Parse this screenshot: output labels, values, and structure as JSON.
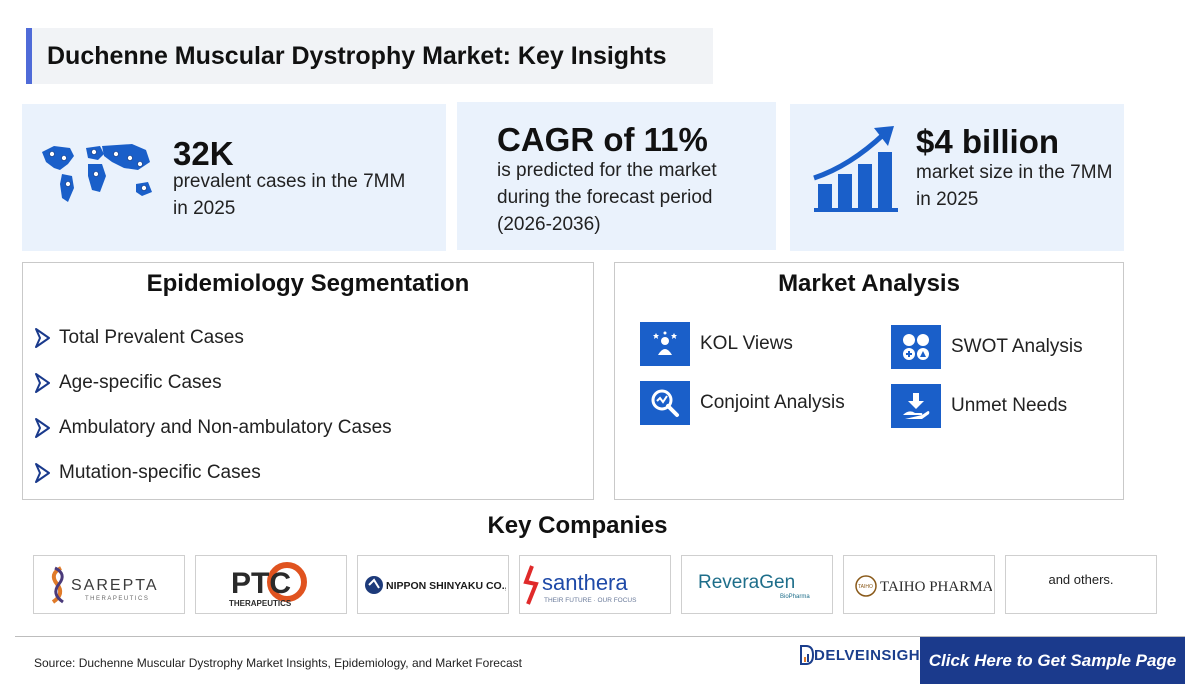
{
  "title": "Duchenne Muscular Dystrophy Market: Key Insights",
  "stats": [
    {
      "big": "32K",
      "text": "prevalent cases in the 7MM in 2025",
      "icon": "world-map-icon"
    },
    {
      "big": "CAGR of 11%",
      "text": "is predicted for the market during the forecast period (2026-2036)"
    },
    {
      "big": "$4 billion",
      "text": "market size in the 7MM in 2025",
      "icon": "growth-chart-icon"
    }
  ],
  "epidemiology": {
    "title": "Epidemiology Segmentation",
    "items": [
      "Total Prevalent Cases",
      "Age-specific Cases",
      "Ambulatory and Non-ambulatory Cases",
      "Mutation-specific Cases"
    ]
  },
  "market_analysis": {
    "title": "Market Analysis",
    "items": [
      {
        "label": "KOL Views",
        "icon": "kol-views-icon"
      },
      {
        "label": "SWOT Analysis",
        "icon": "swot-icon"
      },
      {
        "label": "Conjoint Analysis",
        "icon": "conjoint-analysis-icon"
      },
      {
        "label": "Unmet Needs",
        "icon": "unmet-needs-icon"
      }
    ]
  },
  "companies": {
    "title": "Key Companies",
    "logos": [
      {
        "name": "SAREPTA",
        "sub": "THERAPEUTICS"
      },
      {
        "name": "PTC",
        "sub": "THERAPEUTICS"
      },
      {
        "name": "NIPPON SHINYAKU CO.,LTD."
      },
      {
        "name": "santhera",
        "sub": "THEIR FUTURE · OUR FOCUS"
      },
      {
        "name": "ReveraGen",
        "sub": "BioPharma"
      },
      {
        "name": "TAIHO PHARMA",
        "mark": "TAIHO"
      }
    ],
    "others": "and others."
  },
  "footer": {
    "source": "Source: Duchenne Muscular Dystrophy Market Insights, Epidemiology, and Market Forecast",
    "brand": "DELVEINSIGHT",
    "cta": "Click Here to Get Sample Page"
  },
  "colors": {
    "accent": "#4f6bd8",
    "card_bg": "#eaf2fc",
    "icon_blue": "#1a5fc9",
    "cta_bg": "#1b3a8c"
  }
}
